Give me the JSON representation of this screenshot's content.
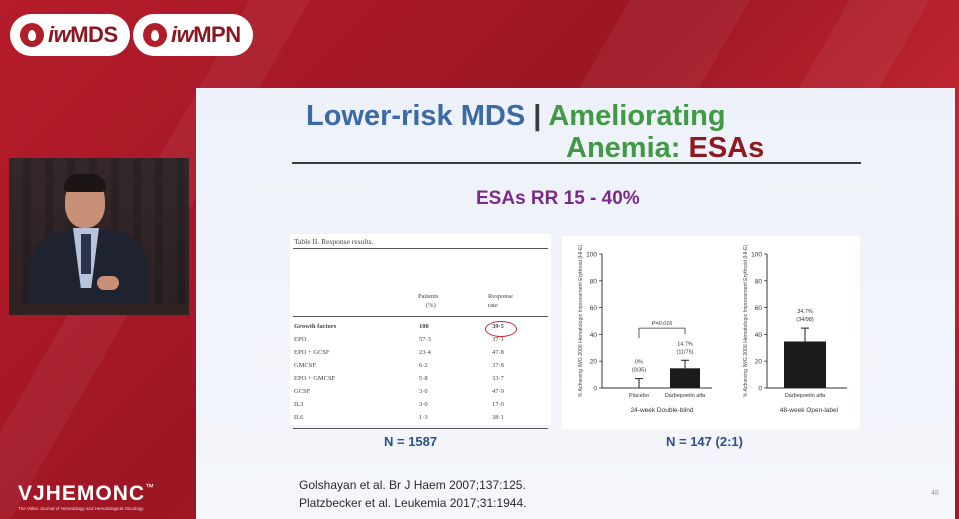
{
  "logos": [
    {
      "prefix": "iw",
      "suffix": "MDS"
    },
    {
      "prefix": "iw",
      "suffix": "MPN"
    }
  ],
  "slide": {
    "title_part1": "Lower-risk MDS",
    "title_sep": "|",
    "title_part2": "Ameliorating",
    "title_part3": "Anemia:",
    "title_part4": "ESAs",
    "subtitle": "ESAs RR 15 - 40%",
    "table": {
      "caption": "Table II.  Response results.",
      "col_patients": [
        "Patients",
        "(%)"
      ],
      "col_response": [
        "Response",
        "rate"
      ],
      "rows": [
        {
          "name": "Growth factors",
          "patients": "100",
          "rate": "39·5"
        },
        {
          "name": "EPO",
          "patients": "57·3",
          "rate": "37·1"
        },
        {
          "name": "EPO + GCSF",
          "patients": "23·4",
          "rate": "47·8"
        },
        {
          "name": "GMCSF",
          "patients": "6·2",
          "rate": "37·8"
        },
        {
          "name": "EPO + GMCSF",
          "patients": "5·8",
          "rate": "33·7"
        },
        {
          "name": "GCSF",
          "patients": "3·0",
          "rate": "47·9"
        },
        {
          "name": "IL3",
          "patients": "3·0",
          "rate": "17·0"
        },
        {
          "name": "IL6",
          "patients": "1·3",
          "rate": "38·1"
        }
      ]
    },
    "n_left": "N = 1587",
    "n_right": "N = 147 (2:1)",
    "references": [
      "Golshayan et al.  Br J Haem 2007;137:125.",
      "Platzbecker et al. Leukemia 2017;31:1944."
    ],
    "page_number": "48"
  },
  "chart_data": [
    {
      "type": "bar",
      "ylabel": "% Achieving IWG 2006 Hematologic Improvement Erythroid (HI-E)",
      "ylim": [
        0,
        100
      ],
      "yticks": [
        0,
        20,
        40,
        60,
        80,
        100
      ],
      "categories": [
        "Placebo",
        "Darbepoetin alfa"
      ],
      "values": [
        0,
        14.7
      ],
      "bar_labels": [
        [
          "0%",
          "(0/35)"
        ],
        [
          "14.7%",
          "(11/75)"
        ]
      ],
      "xlabel": "24-week Double-blind",
      "annotation": "P=0.016"
    },
    {
      "type": "bar",
      "ylabel": "% Achieving IWG 2006 Hematologic Improvement Erythroid (HI-E)",
      "ylim": [
        0,
        100
      ],
      "yticks": [
        0,
        20,
        40,
        60,
        80,
        100
      ],
      "categories": [
        "Darbepoetin alfa"
      ],
      "values": [
        34.7
      ],
      "bar_labels": [
        [
          "34.7%",
          "(34/98)"
        ]
      ],
      "xlabel": "48-week Open-label"
    }
  ],
  "brand": {
    "name_a": "VJHEM",
    "name_b": "O",
    "name_c": "NC",
    "tm": "™",
    "tagline": "The Video Journal of Hematology and Hematological Oncology"
  }
}
